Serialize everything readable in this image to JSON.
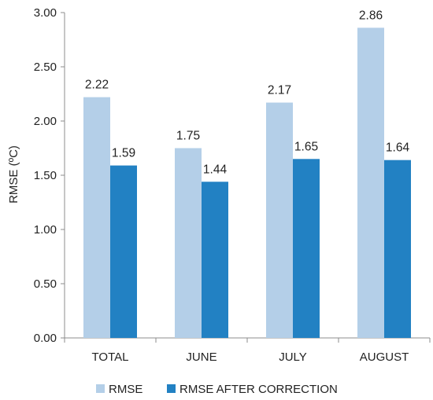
{
  "chart_data": {
    "type": "bar",
    "categories": [
      "TOTAL",
      "JUNE",
      "JULY",
      "AUGUST"
    ],
    "series": [
      {
        "name": "RMSE",
        "values": [
          2.22,
          1.75,
          2.17,
          2.86
        ],
        "color": "#b4cfe8"
      },
      {
        "name": "RMSE AFTER CORRECTION",
        "values": [
          1.59,
          1.44,
          1.65,
          1.64
        ],
        "color": "#2281c3"
      }
    ],
    "data_labels": [
      [
        "2.22",
        "1.75",
        "2.17",
        "2.86"
      ],
      [
        "1.59",
        "1.44",
        "1.65",
        "1.64"
      ]
    ],
    "ylabel": "RMSE (ºC)",
    "xlabel": "",
    "ylim": [
      0,
      3
    ],
    "yticks": [
      "0.00",
      "0.50",
      "1.00",
      "1.50",
      "2.00",
      "2.50",
      "3.00"
    ],
    "grid": false,
    "legend_position": "bottom"
  }
}
